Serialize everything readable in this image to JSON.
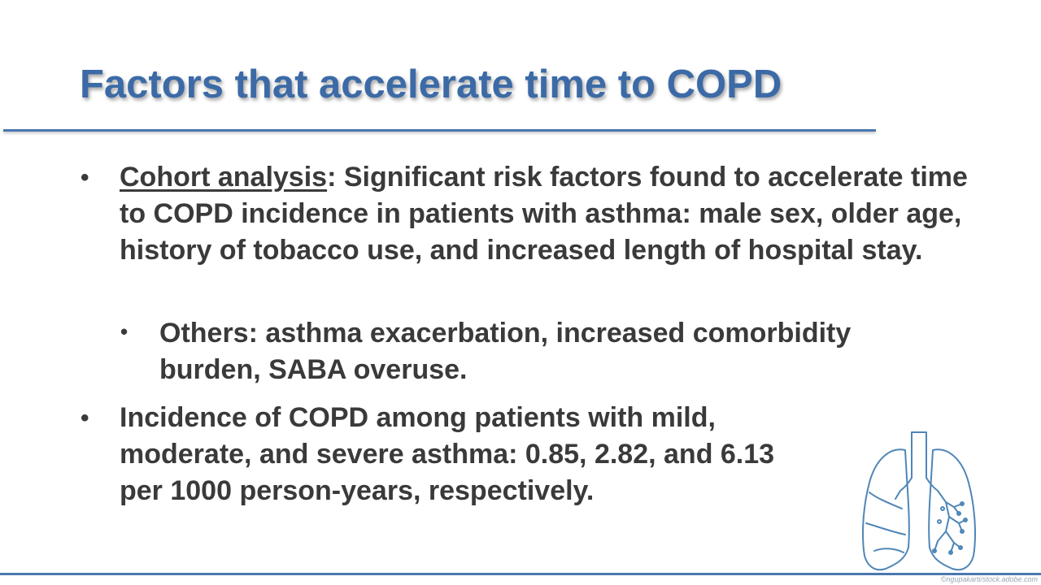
{
  "slide": {
    "title": "Factors that accelerate time to COPD",
    "bullets": [
      {
        "lead": "Cohort analysis",
        "text": ": Significant risk factors found to accelerate time to COPD incidence in patients with asthma: male sex, older age, history of tobacco use, and increased length of hospital stay."
      },
      {
        "text": "Others: asthma exacerbation, increased comorbidity burden,  SABA overuse."
      },
      {
        "text": "Incidence of COPD among patients with mild, moderate, and severe asthma: 0.85, 2.82, and 6.13 per 1000 person-years, respectively."
      }
    ],
    "bullet_glyph": "•",
    "image_credit": "©ngupakarti/stock.adobe.com",
    "colors": {
      "title": "#3c6aa6",
      "rule": "#4a77b0",
      "body": "#3a3a3a",
      "lung_line": "#4f86b8"
    },
    "icons": {
      "illustration": "lungs-icon"
    }
  }
}
